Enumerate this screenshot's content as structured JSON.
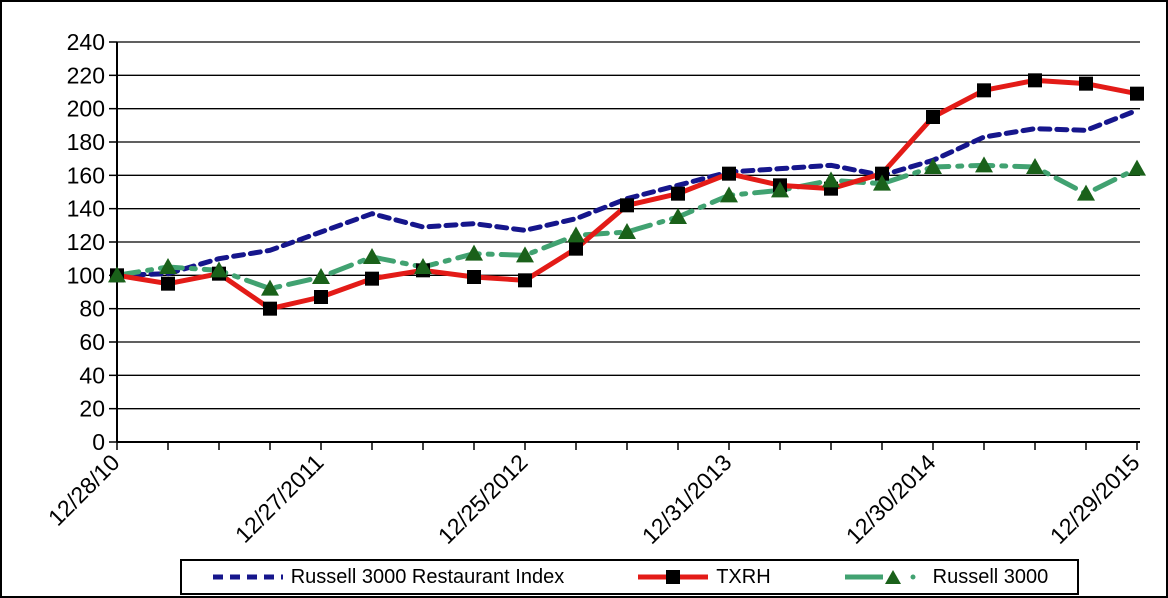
{
  "figure": {
    "background": "#FFFFFF",
    "border_color": "#000000",
    "gridline_color": "#000000",
    "text_color": "#000000"
  },
  "chart_data": {
    "type": "line",
    "title": "",
    "xlabel": "",
    "ylabel": "",
    "n_points": 21,
    "grid": true,
    "legend_position": "bottom",
    "y_axis": {
      "min": 0,
      "max": 240,
      "step": 20
    },
    "y_tick_labels": [
      "0",
      "20",
      "40",
      "60",
      "80",
      "100",
      "120",
      "140",
      "160",
      "180",
      "200",
      "220",
      "240"
    ],
    "x_tick_labels": [
      {
        "index": 0,
        "label": "12/28/10"
      },
      {
        "index": 4,
        "label": "12/27/2011"
      },
      {
        "index": 8,
        "label": "12/25/2012"
      },
      {
        "index": 12,
        "label": "12/31/2013"
      },
      {
        "index": 16,
        "label": "12/30/2014"
      },
      {
        "index": 20,
        "label": "12/29/2015"
      }
    ],
    "series": [
      {
        "name": "Russell 3000 Restaurant Index",
        "line_color": "#16168C",
        "line_style": "dashed",
        "marker": "none",
        "values": [
          100,
          101,
          110,
          115,
          126,
          137,
          129,
          131,
          127,
          134,
          146,
          154,
          162,
          164,
          166,
          160,
          169,
          183,
          188,
          187,
          199
        ]
      },
      {
        "name": "TXRH",
        "line_color": "#E31B17",
        "line_style": "solid",
        "marker": "square",
        "marker_color": "#000000",
        "values": [
          100,
          95,
          101,
          80,
          87,
          98,
          103,
          99,
          97,
          116,
          142,
          149,
          161,
          154,
          152,
          161,
          195,
          211,
          217,
          215,
          209
        ]
      },
      {
        "name": "Russell 3000",
        "line_color": "#41A271",
        "line_style": "dash-dot",
        "marker": "triangle",
        "marker_color": "#1A611A",
        "values": [
          100,
          105,
          103,
          92,
          99,
          111,
          105,
          113,
          112,
          124,
          126,
          135,
          148,
          151,
          157,
          155,
          165,
          166,
          165,
          149,
          164
        ]
      }
    ]
  },
  "legend": {
    "items": [
      {
        "label": "Russell 3000 Restaurant Index"
      },
      {
        "label": "TXRH"
      },
      {
        "label": "Russell 3000"
      }
    ]
  }
}
